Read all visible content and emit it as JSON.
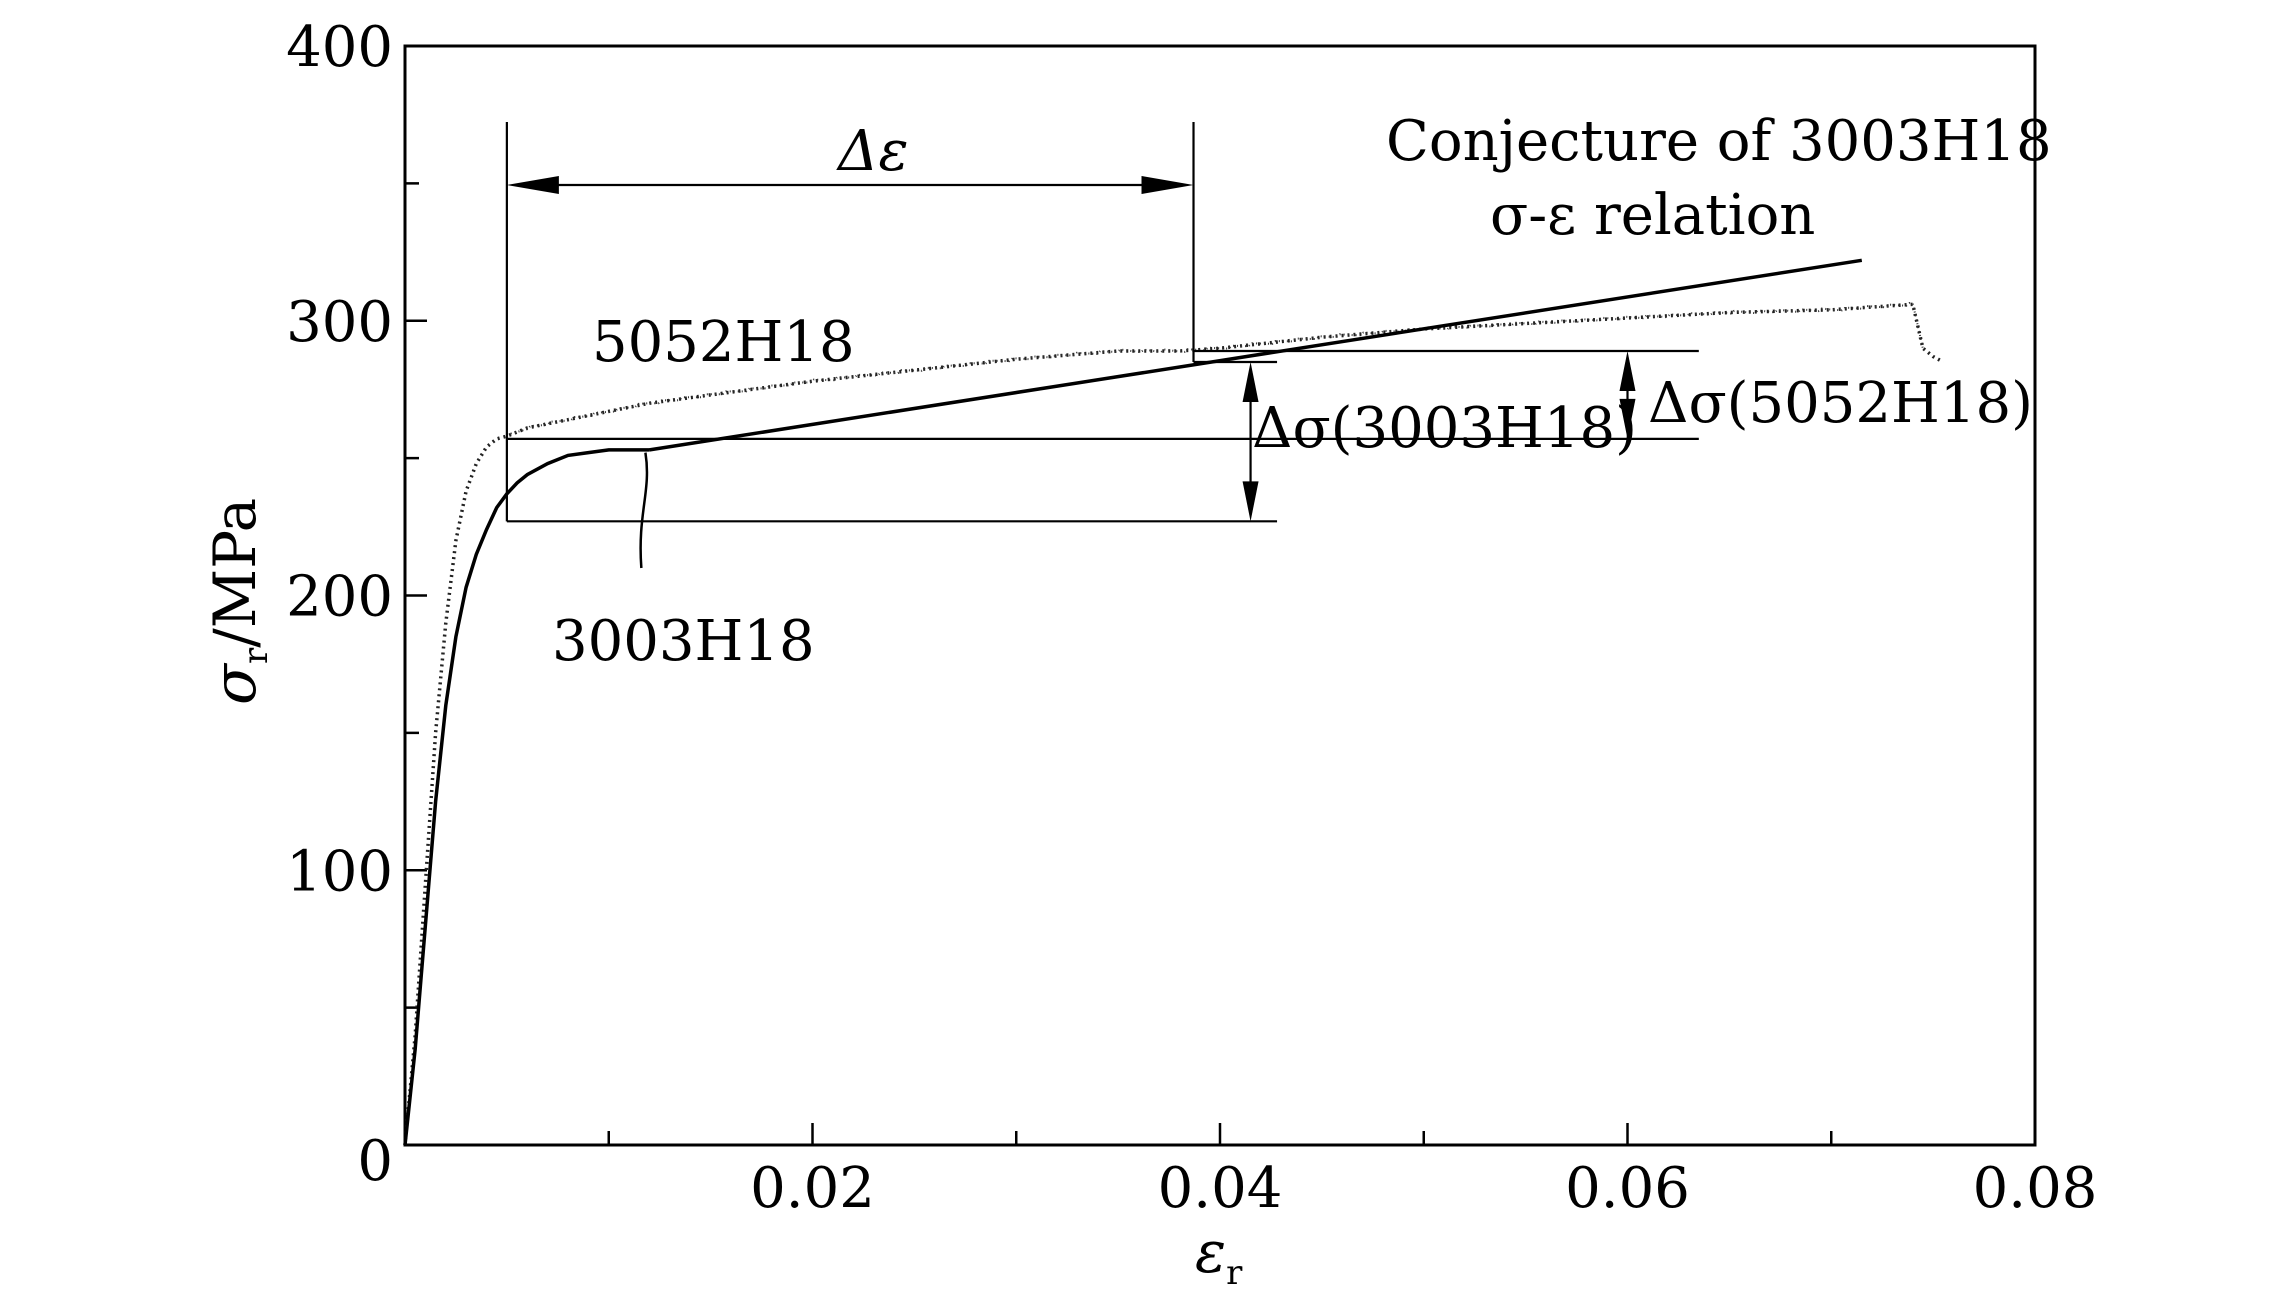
{
  "chart_data": {
    "type": "line",
    "xlabel": "ε",
    "xlabel_sub": "r",
    "ylabel": "σ",
    "ylabel_sub": "r",
    "ylabel_unit": "/MPa",
    "xlim": [
      0,
      0.08
    ],
    "ylim": [
      0,
      400
    ],
    "x_ticks": [
      "0.02",
      "0.04",
      "0.06",
      "0.08"
    ],
    "y_ticks": [
      "400",
      "300",
      "200",
      "100"
    ],
    "origin_label": "0",
    "grid": false,
    "series": [
      {
        "name": "5052H18",
        "style": "dotted",
        "x": [
          0,
          0.0005,
          0.001,
          0.0015,
          0.002,
          0.0025,
          0.003,
          0.0035,
          0.004,
          0.0045,
          0.005,
          0.006,
          0.008,
          0.01,
          0.012,
          0.015,
          0.02,
          0.025,
          0.03,
          0.035,
          0.038,
          0.04,
          0.045,
          0.05,
          0.055,
          0.06,
          0.065,
          0.07,
          0.074,
          0.0745,
          0.075,
          0.0755
        ],
        "y": [
          0,
          40,
          95,
          150,
          190,
          220,
          238,
          248,
          254,
          257,
          258,
          261,
          264,
          267,
          270,
          273,
          278,
          282,
          286,
          289,
          289,
          290,
          294,
          297,
          299,
          301,
          303,
          304,
          306,
          290,
          287,
          285
        ]
      },
      {
        "name": "3003H18",
        "style": "solid",
        "x": [
          0,
          0.0005,
          0.001,
          0.0015,
          0.002,
          0.0025,
          0.003,
          0.0035,
          0.004,
          0.0045,
          0.005,
          0.0055,
          0.006,
          0.007,
          0.008,
          0.009,
          0.01,
          0.011,
          0.012
        ],
        "y": [
          0,
          35,
          80,
          125,
          160,
          185,
          203,
          215,
          224,
          232,
          237,
          241,
          244,
          248,
          251,
          252,
          253,
          253,
          253
        ]
      },
      {
        "name": "Conjecture of 3003H18 σ-ε relation",
        "style": "solid",
        "x": [
          0.012,
          0.0715
        ],
        "y": [
          253,
          322
        ]
      }
    ],
    "annotations": {
      "delta_eps": "Δε",
      "delta_sigma_3003": "Δσ(3003H18)",
      "delta_sigma_5052": "Δσ(5052H18)",
      "label_5052": "5052H18",
      "label_3003": "3003H18",
      "conjecture_line1": "Conjecture of 3003H18",
      "conjecture_line2": "σ-ε relation"
    }
  }
}
